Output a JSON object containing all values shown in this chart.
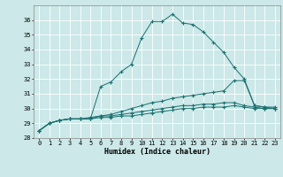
{
  "xlabel": "Humidex (Indice chaleur)",
  "bg_color": "#cce8e8",
  "grid_color": "#ffffff",
  "line_color": "#1a7070",
  "xlim": [
    -0.5,
    23.5
  ],
  "ylim": [
    28,
    37
  ],
  "xticks": [
    0,
    1,
    2,
    3,
    4,
    5,
    6,
    7,
    8,
    9,
    10,
    11,
    12,
    13,
    14,
    15,
    16,
    17,
    18,
    19,
    20,
    21,
    22,
    23
  ],
  "yticks": [
    28,
    29,
    30,
    31,
    32,
    33,
    34,
    35,
    36
  ],
  "series": [
    [
      28.5,
      29.0,
      29.2,
      29.3,
      29.3,
      29.3,
      31.5,
      31.8,
      32.5,
      33.0,
      34.8,
      35.9,
      35.9,
      36.4,
      35.8,
      35.7,
      35.2,
      34.5,
      33.8,
      32.8,
      32.0,
      30.2,
      30.1,
      30.1
    ],
    [
      28.5,
      29.0,
      29.2,
      29.3,
      29.3,
      29.4,
      29.5,
      29.6,
      29.8,
      30.0,
      30.2,
      30.4,
      30.5,
      30.7,
      30.8,
      30.9,
      31.0,
      31.1,
      31.2,
      31.9,
      31.9,
      30.2,
      30.1,
      30.0
    ],
    [
      28.5,
      29.0,
      29.2,
      29.3,
      29.3,
      29.3,
      29.5,
      29.5,
      29.6,
      29.7,
      29.8,
      29.9,
      30.0,
      30.1,
      30.2,
      30.2,
      30.3,
      30.3,
      30.4,
      30.4,
      30.2,
      30.1,
      30.0,
      30.0
    ],
    [
      28.5,
      29.0,
      29.2,
      29.3,
      29.3,
      29.3,
      29.4,
      29.4,
      29.5,
      29.5,
      29.6,
      29.7,
      29.8,
      29.9,
      30.0,
      30.0,
      30.1,
      30.1,
      30.1,
      30.2,
      30.1,
      30.0,
      30.0,
      30.0
    ]
  ]
}
